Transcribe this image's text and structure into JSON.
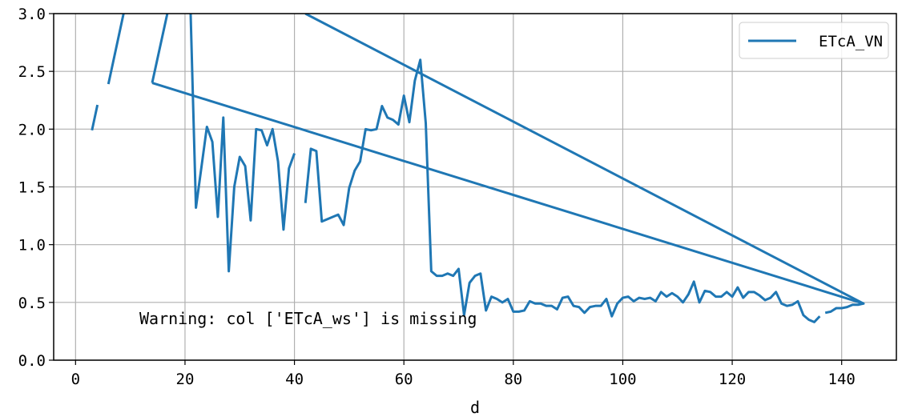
{
  "chart_data": {
    "type": "line",
    "title": "",
    "xlabel": "d",
    "ylabel": "",
    "xlim": [
      -4,
      150
    ],
    "ylim": [
      0,
      3
    ],
    "xticks": [
      0,
      20,
      40,
      60,
      80,
      100,
      120,
      140
    ],
    "xtick_labels": [
      "0",
      "20",
      "40",
      "60",
      "80",
      "100",
      "120",
      "140"
    ],
    "yticks": [
      0,
      0.5,
      1,
      1.5,
      2,
      2.5,
      3
    ],
    "ytick_labels": [
      "0.0",
      "0.5",
      "1.0",
      "1.5",
      "2.0",
      "2.5",
      "3.0"
    ],
    "grid": true,
    "legend_position": "top-right",
    "annotation": "Warning: col ['ETcA_ws'] is missing",
    "colors": {
      "series": "#1f77b4",
      "grid": "#b0b0b0",
      "axis": "#000000"
    },
    "series": [
      {
        "name": "ETcA_VN",
        "segments": [
          [
            [
              3,
              1.99
            ],
            [
              4,
              2.21
            ]
          ],
          [
            [
              6,
              2.39
            ],
            [
              9,
              3.05
            ]
          ],
          [
            [
              14,
              2.4
            ],
            [
              17,
              3.05
            ]
          ],
          [
            [
              21,
              3.05
            ],
            [
              22,
              1.32
            ],
            [
              24,
              2.02
            ],
            [
              25,
              1.89
            ],
            [
              26,
              1.24
            ],
            [
              27,
              2.1
            ],
            [
              28,
              0.77
            ],
            [
              29,
              1.5
            ],
            [
              30,
              1.76
            ],
            [
              31,
              1.68
            ],
            [
              32,
              1.21
            ],
            [
              33,
              2.0
            ],
            [
              34,
              1.99
            ],
            [
              35,
              1.86
            ],
            [
              36,
              2.0
            ],
            [
              37,
              1.72
            ],
            [
              38,
              1.13
            ],
            [
              39,
              1.66
            ],
            [
              40,
              1.79
            ]
          ],
          [
            [
              42,
              1.36
            ],
            [
              43,
              1.83
            ],
            [
              44,
              1.81
            ],
            [
              45,
              1.2
            ],
            [
              48,
              1.26
            ],
            [
              49,
              1.17
            ],
            [
              50,
              1.49
            ],
            [
              51,
              1.64
            ],
            [
              52,
              1.72
            ],
            [
              53,
              2.0
            ],
            [
              54,
              1.99
            ],
            [
              55,
              2.0
            ],
            [
              56,
              2.2
            ],
            [
              57,
              2.1
            ],
            [
              58,
              2.08
            ],
            [
              59,
              2.04
            ],
            [
              60,
              2.29
            ],
            [
              61,
              2.06
            ],
            [
              62,
              2.42
            ],
            [
              63,
              2.6
            ],
            [
              64,
              2.05
            ],
            [
              65,
              0.77
            ],
            [
              66,
              0.73
            ],
            [
              67,
              0.73
            ],
            [
              68,
              0.75
            ],
            [
              69,
              0.73
            ],
            [
              70,
              0.79
            ],
            [
              71,
              0.39
            ],
            [
              72,
              0.67
            ],
            [
              73,
              0.73
            ],
            [
              74,
              0.75
            ],
            [
              75,
              0.43
            ],
            [
              76,
              0.55
            ],
            [
              77,
              0.53
            ],
            [
              78,
              0.5
            ],
            [
              79,
              0.53
            ],
            [
              80,
              0.42
            ],
            [
              81,
              0.42
            ],
            [
              82,
              0.43
            ],
            [
              83,
              0.51
            ],
            [
              84,
              0.49
            ],
            [
              85,
              0.49
            ],
            [
              86,
              0.47
            ],
            [
              87,
              0.47
            ],
            [
              88,
              0.44
            ],
            [
              89,
              0.54
            ],
            [
              90,
              0.55
            ],
            [
              91,
              0.47
            ],
            [
              92,
              0.46
            ],
            [
              93,
              0.41
            ],
            [
              94,
              0.46
            ],
            [
              95,
              0.47
            ],
            [
              96,
              0.47
            ],
            [
              97,
              0.53
            ],
            [
              98,
              0.38
            ],
            [
              99,
              0.49
            ],
            [
              100,
              0.54
            ],
            [
              101,
              0.55
            ],
            [
              102,
              0.51
            ],
            [
              103,
              0.54
            ],
            [
              104,
              0.53
            ],
            [
              105,
              0.54
            ],
            [
              106,
              0.51
            ],
            [
              107,
              0.59
            ],
            [
              108,
              0.55
            ],
            [
              109,
              0.58
            ],
            [
              110,
              0.55
            ],
            [
              111,
              0.5
            ],
            [
              112,
              0.57
            ],
            [
              113,
              0.68
            ],
            [
              114,
              0.5
            ],
            [
              115,
              0.6
            ],
            [
              116,
              0.59
            ],
            [
              117,
              0.55
            ],
            [
              118,
              0.55
            ],
            [
              119,
              0.59
            ],
            [
              120,
              0.55
            ],
            [
              121,
              0.63
            ],
            [
              122,
              0.54
            ],
            [
              123,
              0.59
            ],
            [
              124,
              0.59
            ],
            [
              125,
              0.56
            ],
            [
              126,
              0.52
            ],
            [
              127,
              0.54
            ],
            [
              128,
              0.59
            ],
            [
              129,
              0.49
            ],
            [
              130,
              0.47
            ],
            [
              131,
              0.48
            ],
            [
              132,
              0.51
            ],
            [
              133,
              0.39
            ],
            [
              134,
              0.35
            ],
            [
              135,
              0.33
            ],
            [
              136,
              0.38
            ]
          ],
          [
            [
              137,
              0.41
            ],
            [
              138,
              0.42
            ],
            [
              139,
              0.45
            ],
            [
              140,
              0.45
            ],
            [
              141,
              0.46
            ],
            [
              142,
              0.48
            ],
            [
              143,
              0.48
            ],
            [
              144,
              0.49
            ],
            [
              14,
              2.4
            ]
          ],
          [
            [
              144,
              0.49
            ],
            [
              42,
              3.0
            ]
          ]
        ]
      }
    ]
  }
}
